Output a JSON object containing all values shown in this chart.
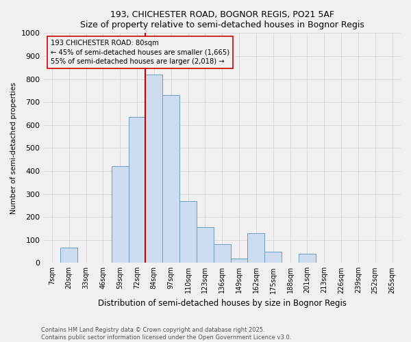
{
  "title_line1": "193, CHICHESTER ROAD, BOGNOR REGIS, PO21 5AF",
  "title_line2": "Size of property relative to semi-detached houses in Bognor Regis",
  "xlabel": "Distribution of semi-detached houses by size in Bognor Regis",
  "ylabel": "Number of semi-detached properties",
  "bin_labels": [
    "7sqm",
    "20sqm",
    "33sqm",
    "46sqm",
    "59sqm",
    "72sqm",
    "84sqm",
    "97sqm",
    "110sqm",
    "123sqm",
    "136sqm",
    "149sqm",
    "162sqm",
    "175sqm",
    "188sqm",
    "201sqm",
    "213sqm",
    "226sqm",
    "239sqm",
    "252sqm",
    "265sqm"
  ],
  "counts": [
    0,
    65,
    0,
    0,
    420,
    635,
    820,
    730,
    270,
    155,
    80,
    18,
    130,
    50,
    0,
    40,
    0,
    0,
    0,
    0,
    0
  ],
  "bar_facecolor": "#cddcee",
  "bar_edgecolor": "#6a9cc4",
  "property_bin": 6,
  "vline_color": "#cc0000",
  "annotation_text": "193 CHICHESTER ROAD: 80sqm\n← 45% of semi-detached houses are smaller (1,665)\n55% of semi-detached houses are larger (2,018) →",
  "annotation_box_edgecolor": "#cc0000",
  "ylim": [
    0,
    1000
  ],
  "yticks": [
    0,
    100,
    200,
    300,
    400,
    500,
    600,
    700,
    800,
    900,
    1000
  ],
  "footer_line1": "Contains HM Land Registry data © Crown copyright and database right 2025.",
  "footer_line2": "Contains public sector information licensed under the Open Government Licence v3.0.",
  "bg_color": "#f0f0f0",
  "grid_color": "#d0d0d0"
}
